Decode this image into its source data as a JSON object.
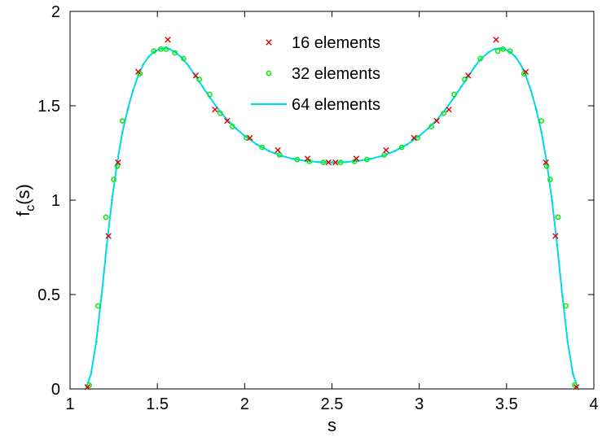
{
  "chart_data": {
    "type": "line",
    "xlabel": "s",
    "ylabel_main": "f",
    "ylabel_sub": "c",
    "ylabel_tail": "(s)",
    "xlim": [
      1,
      4
    ],
    "ylim": [
      0,
      2
    ],
    "xticks": [
      1,
      1.5,
      2,
      2.5,
      3,
      3.5,
      4
    ],
    "xtick_labels": [
      "1",
      "1.5",
      "2",
      "2.5",
      "3",
      "3.5",
      "4"
    ],
    "yticks": [
      0,
      0.5,
      1,
      1.5,
      2
    ],
    "ytick_labels": [
      "0",
      "0.5",
      "1",
      "1.5",
      "2"
    ],
    "grid": false,
    "legend_position": "top-center",
    "series": [
      {
        "name": "16 elements",
        "marker": "x",
        "color": "#e00000",
        "show_line": false,
        "x": [
          1.1,
          1.22,
          1.275,
          1.39,
          1.56,
          1.72,
          1.83,
          1.9,
          2.03,
          2.19,
          2.36,
          2.48,
          2.52,
          2.64,
          2.81,
          2.97,
          3.1,
          3.17,
          3.28,
          3.44,
          3.61,
          3.725,
          3.78,
          3.9
        ],
        "y": [
          0.01,
          0.81,
          1.2,
          1.68,
          1.85,
          1.66,
          1.48,
          1.42,
          1.33,
          1.265,
          1.22,
          1.2,
          1.2,
          1.22,
          1.265,
          1.33,
          1.42,
          1.48,
          1.66,
          1.85,
          1.68,
          1.2,
          0.81,
          0.01
        ]
      },
      {
        "name": "32 elements",
        "marker": "circle",
        "color": "#00ee00",
        "show_line": false,
        "x": [
          1.11,
          1.16,
          1.205,
          1.25,
          1.27,
          1.3,
          1.4,
          1.48,
          1.52,
          1.55,
          1.6,
          1.65,
          1.74,
          1.8,
          1.86,
          1.93,
          2.01,
          2.1,
          2.2,
          2.3,
          2.37,
          2.45,
          2.55,
          2.63,
          2.7,
          2.8,
          2.9,
          2.99,
          3.07,
          3.14,
          3.2,
          3.26,
          3.35,
          3.45,
          3.48,
          3.52,
          3.6,
          3.7,
          3.73,
          3.75,
          3.795,
          3.84,
          3.89
        ],
        "y": [
          0.02,
          0.44,
          0.91,
          1.11,
          1.18,
          1.42,
          1.67,
          1.79,
          1.8,
          1.8,
          1.78,
          1.75,
          1.64,
          1.56,
          1.46,
          1.39,
          1.33,
          1.28,
          1.24,
          1.215,
          1.205,
          1.2,
          1.2,
          1.205,
          1.215,
          1.24,
          1.28,
          1.33,
          1.39,
          1.46,
          1.56,
          1.64,
          1.75,
          1.79,
          1.8,
          1.79,
          1.67,
          1.42,
          1.18,
          1.11,
          0.91,
          0.44,
          0.02
        ]
      },
      {
        "name": "64 elements",
        "marker": "point",
        "color": "#00d8e8",
        "show_line": true,
        "x": [
          1.09,
          1.12,
          1.15,
          1.18,
          1.21,
          1.24,
          1.27,
          1.3,
          1.33,
          1.36,
          1.39,
          1.42,
          1.45,
          1.48,
          1.51,
          1.54,
          1.57,
          1.6,
          1.64,
          1.68,
          1.72,
          1.76,
          1.8,
          1.85,
          1.9,
          1.95,
          2.0,
          2.07,
          2.14,
          2.21,
          2.28,
          2.35,
          2.42,
          2.5,
          2.58,
          2.65,
          2.72,
          2.79,
          2.86,
          2.93,
          3.0,
          3.05,
          3.1,
          3.15,
          3.2,
          3.24,
          3.28,
          3.32,
          3.36,
          3.4,
          3.43,
          3.46,
          3.49,
          3.52,
          3.55,
          3.58,
          3.61,
          3.64,
          3.67,
          3.7,
          3.73,
          3.76,
          3.79,
          3.82,
          3.85,
          3.88,
          3.91
        ],
        "y": [
          0.0,
          0.08,
          0.25,
          0.49,
          0.76,
          1.0,
          1.2,
          1.36,
          1.48,
          1.58,
          1.66,
          1.72,
          1.76,
          1.785,
          1.8,
          1.805,
          1.8,
          1.785,
          1.755,
          1.71,
          1.655,
          1.6,
          1.545,
          1.48,
          1.425,
          1.38,
          1.34,
          1.295,
          1.26,
          1.235,
          1.218,
          1.208,
          1.202,
          1.2,
          1.202,
          1.208,
          1.218,
          1.235,
          1.26,
          1.295,
          1.34,
          1.38,
          1.425,
          1.48,
          1.545,
          1.6,
          1.655,
          1.71,
          1.755,
          1.785,
          1.8,
          1.805,
          1.8,
          1.785,
          1.76,
          1.72,
          1.66,
          1.58,
          1.48,
          1.36,
          1.2,
          1.0,
          0.76,
          0.49,
          0.25,
          0.08,
          0.0
        ]
      }
    ]
  }
}
